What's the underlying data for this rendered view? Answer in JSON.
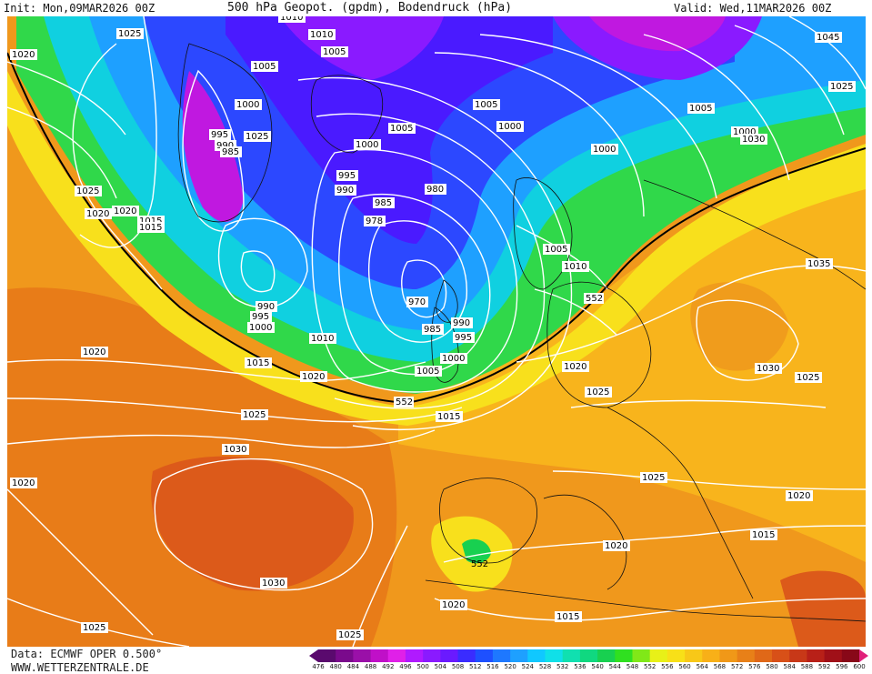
{
  "header": {
    "init": "Init: Mon,09MAR2026 00Z",
    "title": "500 hPa Geopot. (gpdm), Bodendruck (hPa)",
    "valid": "Valid: Wed,11MAR2026 00Z"
  },
  "footer": {
    "data_source": "Data: ECMWF OPER 0.500°",
    "website": "WWW.WETTERZENTRALE.DE"
  },
  "legend": {
    "values": [
      "476",
      "480",
      "484",
      "488",
      "492",
      "496",
      "500",
      "504",
      "508",
      "512",
      "516",
      "520",
      "524",
      "528",
      "532",
      "536",
      "540",
      "544",
      "548",
      "552",
      "556",
      "560",
      "564",
      "568",
      "572",
      "576",
      "580",
      "584",
      "588",
      "592",
      "596",
      "600"
    ],
    "colors": [
      "#5a0a6e",
      "#7a0a8c",
      "#9a10a8",
      "#c010c8",
      "#e020e8",
      "#b01aff",
      "#8a1aff",
      "#6a1aff",
      "#3a2cff",
      "#1e50ff",
      "#1e78ff",
      "#1ea0ff",
      "#10c8ff",
      "#10e0e8",
      "#10e0b0",
      "#10d880",
      "#18d050",
      "#30e020",
      "#80e818",
      "#e8f018",
      "#f8e018",
      "#f8c818",
      "#f8b018",
      "#f09818",
      "#e88018",
      "#e06818",
      "#d85018",
      "#c83818",
      "#b82018",
      "#a01018",
      "#880818",
      "#e0207a"
    ]
  },
  "map_labels": {
    "pressure": [
      "1025",
      "1020",
      "1025",
      "1020",
      "1015",
      "995",
      "990",
      "985",
      "1000",
      "1005",
      "1010",
      "1010",
      "1005",
      "1000",
      "995",
      "990",
      "985",
      "978",
      "980",
      "1005",
      "1000",
      "1005",
      "1000",
      "1005",
      "1010",
      "1005",
      "1000",
      "1045",
      "1030",
      "1025",
      "1020",
      "1015",
      "1020",
      "1025",
      "1020",
      "1025",
      "1030",
      "1025",
      "1015",
      "1020",
      "1025",
      "1035",
      "1030",
      "1025",
      "1020",
      "1015",
      "1020",
      "1015",
      "1030",
      "1025",
      "1020",
      "1015",
      "1025",
      "1020",
      "990",
      "995",
      "1000",
      "970",
      "985",
      "990",
      "995",
      "1000",
      "1005",
      "1010",
      "1015",
      "1020",
      "1005",
      "1010",
      "1020"
    ],
    "geopotential": [
      "552",
      "552",
      "552"
    ]
  }
}
